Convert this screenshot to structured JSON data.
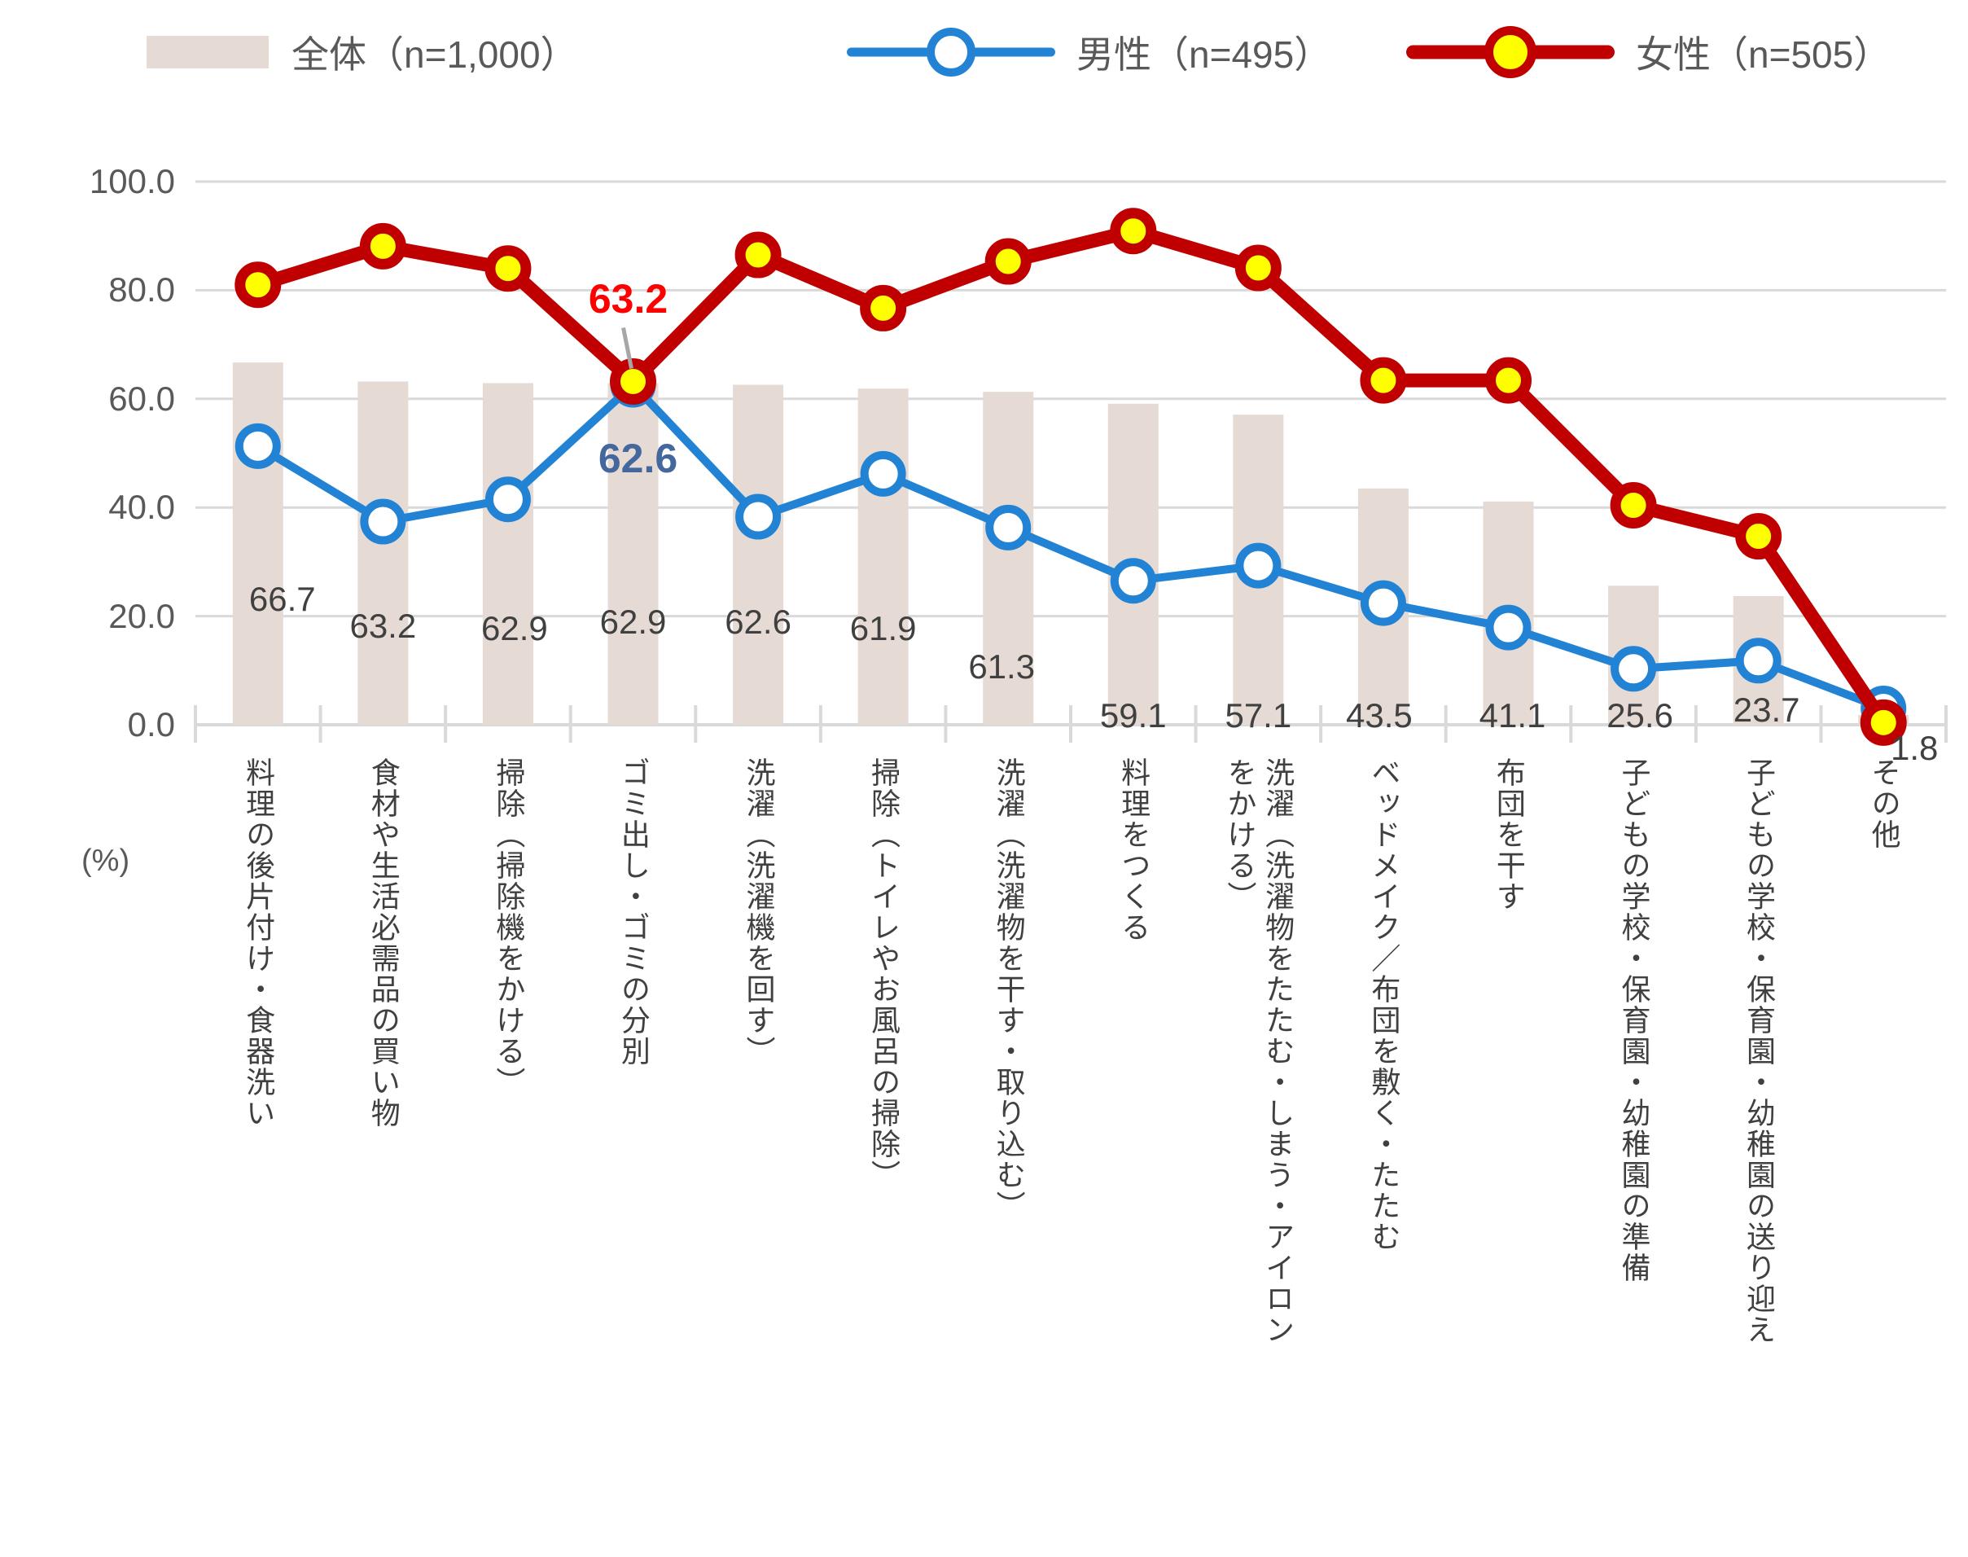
{
  "legend": {
    "items": [
      {
        "label": "全体（n=1,000）",
        "swatch": "bar-swatch"
      },
      {
        "label": "男性（n=495）",
        "swatch": "male-line-swatch"
      },
      {
        "label": "女性（n=505）",
        "swatch": "female-line-swatch"
      }
    ]
  },
  "axis": {
    "unit": "(%)"
  },
  "colors": {
    "bar": "#E5DBD4",
    "male_line": "#2283D5",
    "female_line": "#C00000",
    "marker_yellow": "#FFFF00",
    "marker_white": "#FFFFFF",
    "gridline": "#D9D9D9",
    "axis_text": "#595959",
    "bar_label_text": "#404040",
    "annotation_female": "#FF0000",
    "annotation_male": "#44679E",
    "leader_line": "#A6A6A6"
  },
  "chart_data": {
    "type": "combo",
    "grid": true,
    "legend_position": "top",
    "ylim": [
      0,
      100
    ],
    "ytick_step": 20,
    "yticks": [
      "100.0",
      "80.0",
      "60.0",
      "40.0",
      "20.0",
      "0.0"
    ],
    "unit": "(%)",
    "categories": [
      "料理の後片付け・食器洗い",
      "食材や生活必需品の買い物",
      "掃除（掃除機をかける）",
      "ゴミ出し・ゴミの分別",
      "洗濯（洗濯機を回す）",
      "掃除（トイレやお風呂の掃除）",
      "洗濯（洗濯物を干す・取り込む）",
      "料理をつくる",
      "洗濯（洗濯物をたたむ・しまう・アイロンをかける）",
      "ベッドメイク／布団を敷く・たたむ",
      "布団を干す",
      "子どもの学校・保育園・幼稚園の準備",
      "子どもの学校・保育園・幼稚園の送り迎え",
      "その他"
    ],
    "series": [
      {
        "name": "全体（n=1,000）",
        "type": "bar",
        "color": "#E5DBD4",
        "values": [
          66.7,
          63.2,
          62.9,
          62.9,
          62.6,
          61.9,
          61.3,
          59.1,
          57.1,
          43.5,
          41.1,
          25.6,
          23.7,
          1.8
        ],
        "labels": [
          "66.7",
          "63.2",
          "62.9",
          "62.9",
          "62.6",
          "61.9",
          "61.3",
          "59.1",
          "57.1",
          "43.5",
          "41.1",
          "25.6",
          "23.7",
          "1.8"
        ]
      },
      {
        "name": "男性（n=495）",
        "type": "line",
        "color": "#2283D5",
        "marker": "white-circle",
        "values": [
          51.3,
          37.4,
          41.5,
          62.6,
          38.3,
          46.2,
          36.3,
          26.5,
          29.3,
          22.4,
          17.9,
          10.3,
          11.8,
          3.0
        ]
      },
      {
        "name": "女性（n=505）",
        "type": "line",
        "color": "#C00000",
        "marker": "yellow-circle",
        "values": [
          81.0,
          88.1,
          84.0,
          63.2,
          86.5,
          76.7,
          85.3,
          90.9,
          84.1,
          63.4,
          63.4,
          40.4,
          34.7,
          0.4
        ]
      }
    ],
    "annotations": [
      {
        "text": "63.2",
        "series_name": "女性（n=505）",
        "category_index": 3,
        "color": "#FF0000",
        "position": "above",
        "leader": true
      },
      {
        "text": "62.6",
        "series_name": "男性（n=495）",
        "category_index": 3,
        "color": "#44679E",
        "position": "below",
        "leader": false
      }
    ]
  }
}
